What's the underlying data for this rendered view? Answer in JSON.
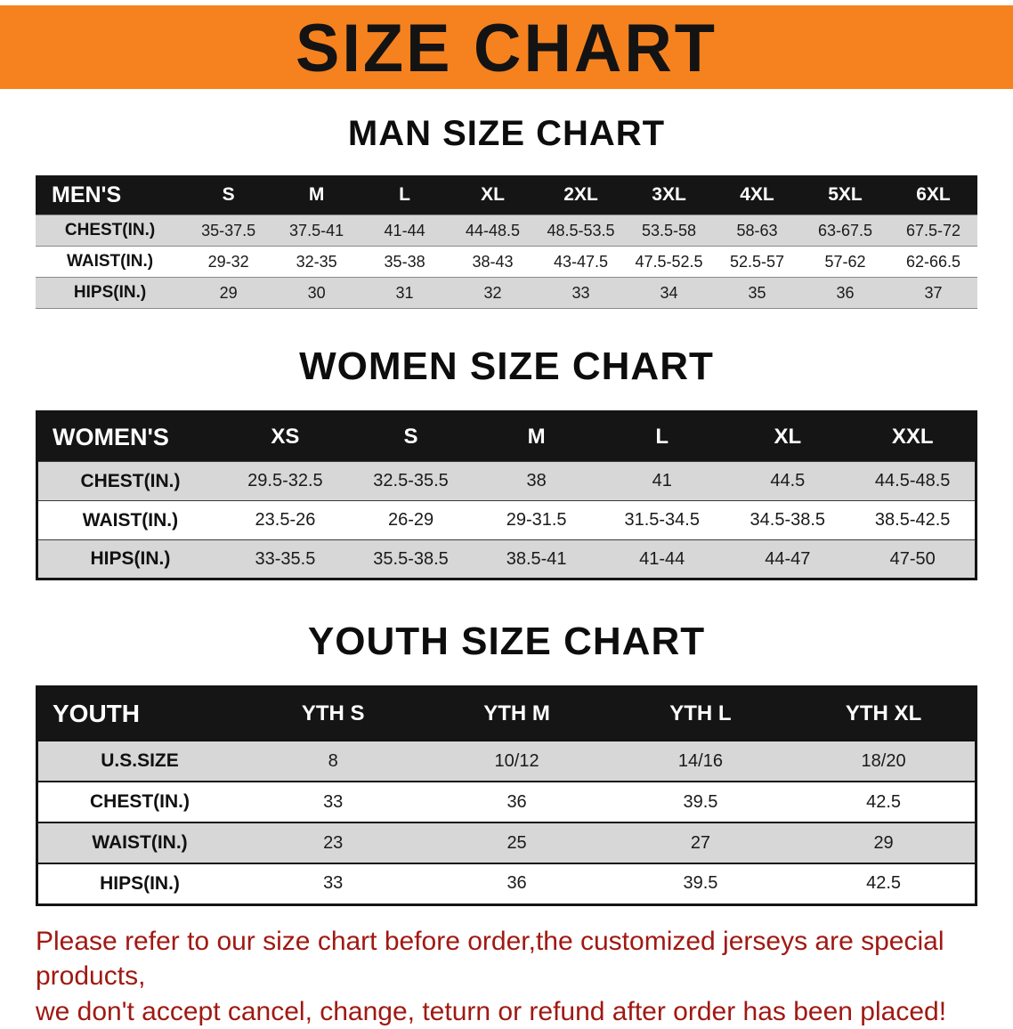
{
  "banner": {
    "title": "SIZE CHART"
  },
  "sections": [
    {
      "id": "men",
      "heading": "MAN SIZE CHART",
      "table": {
        "header": [
          "MEN'S",
          "S",
          "M",
          "L",
          "XL",
          "2XL",
          "3XL",
          "4XL",
          "5XL",
          "6XL"
        ],
        "rows": [
          [
            "CHEST(IN.)",
            "35-37.5",
            "37.5-41",
            "41-44",
            "44-48.5",
            "48.5-53.5",
            "53.5-58",
            "58-63",
            "63-67.5",
            "67.5-72"
          ],
          [
            "WAIST(IN.)",
            "29-32",
            "32-35",
            "35-38",
            "38-43",
            "43-47.5",
            "47.5-52.5",
            "52.5-57",
            "57-62",
            "62-66.5"
          ],
          [
            "HIPS(IN.)",
            "29",
            "30",
            "31",
            "32",
            "33",
            "34",
            "35",
            "36",
            "37"
          ]
        ]
      }
    },
    {
      "id": "women",
      "heading": "WOMEN SIZE CHART",
      "table": {
        "header": [
          "WOMEN'S",
          "XS",
          "S",
          "M",
          "L",
          "XL",
          "XXL"
        ],
        "rows": [
          [
            "CHEST(IN.)",
            "29.5-32.5",
            "32.5-35.5",
            "38",
            "41",
            "44.5",
            "44.5-48.5"
          ],
          [
            "WAIST(IN.)",
            "23.5-26",
            "26-29",
            "29-31.5",
            "31.5-34.5",
            "34.5-38.5",
            "38.5-42.5"
          ],
          [
            "HIPS(IN.)",
            "33-35.5",
            "35.5-38.5",
            "38.5-41",
            "41-44",
            "44-47",
            "47-50"
          ]
        ]
      }
    },
    {
      "id": "youth",
      "heading": "YOUTH SIZE CHART",
      "table": {
        "header": [
          "YOUTH",
          "YTH S",
          "YTH M",
          "YTH L",
          "YTH XL"
        ],
        "rows": [
          [
            "U.S.SIZE",
            "8",
            "10/12",
            "14/16",
            "18/20"
          ],
          [
            "CHEST(IN.)",
            "33",
            "36",
            "39.5",
            "42.5"
          ],
          [
            "WAIST(IN.)",
            "23",
            "25",
            "27",
            "29"
          ],
          [
            "HIPS(IN.)",
            "33",
            "36",
            "39.5",
            "42.5"
          ]
        ]
      }
    }
  ],
  "disclaimer": {
    "lines": [
      "Please refer to our size chart before order,the customized jerseys are special products,",
      "we don't accept cancel, change, teturn or refund after order has been placed!"
    ]
  },
  "colors": {
    "banner_bg": "#f5821f",
    "table_header_bg": "#151515",
    "row_gray": "#d7d7d7",
    "disclaimer_red": "#a01913",
    "border_dark": "#141414"
  }
}
